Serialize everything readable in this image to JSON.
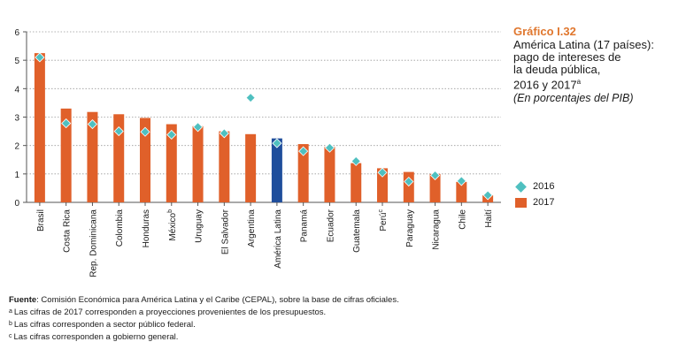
{
  "figure": {
    "label": "Gráfico I.32",
    "title_lines": [
      "América Latina (17 países):",
      "pago de intereses de",
      "la deuda pública,",
      "2016 y 2017"
    ],
    "title_sup": "a",
    "subtitle": "(En porcentajes del PIB)"
  },
  "legend": {
    "s2016": "2016",
    "s2017": "2017"
  },
  "colors": {
    "bar": "#e0602a",
    "bar_highlight": "#1f4e9c",
    "diamond": "#4fc0c0",
    "grid": "#9a9a9a",
    "label_accent": "#e0772e"
  },
  "chart_data": {
    "type": "bar",
    "title": "América Latina (17 países): pago de intereses de la deuda pública, 2016 y 2017",
    "ylabel": "En porcentajes del PIB",
    "ylim": [
      0,
      6
    ],
    "yticks": [
      "0",
      "1",
      "2",
      "3",
      "4",
      "5",
      "6"
    ],
    "grid": true,
    "highlight_category": "América Latina",
    "categories": [
      {
        "name": "Brasil",
        "sup": ""
      },
      {
        "name": "Costa Rica",
        "sup": ""
      },
      {
        "name": "Rep. Dominicana",
        "sup": ""
      },
      {
        "name": "Colombia",
        "sup": ""
      },
      {
        "name": "Honduras",
        "sup": ""
      },
      {
        "name": "México",
        "sup": "b"
      },
      {
        "name": "Uruguay",
        "sup": ""
      },
      {
        "name": "El Salvador",
        "sup": ""
      },
      {
        "name": "Argentina",
        "sup": ""
      },
      {
        "name": "América Latina",
        "sup": ""
      },
      {
        "name": "Panamá",
        "sup": ""
      },
      {
        "name": "Ecuador",
        "sup": ""
      },
      {
        "name": "Guatemala",
        "sup": ""
      },
      {
        "name": "Perú",
        "sup": "c"
      },
      {
        "name": "Paraguay",
        "sup": ""
      },
      {
        "name": "Nicaragua",
        "sup": ""
      },
      {
        "name": "Chile",
        "sup": ""
      },
      {
        "name": "Haití",
        "sup": ""
      }
    ],
    "series": [
      {
        "name": "2017",
        "mark": "bar",
        "values": [
          5.25,
          3.3,
          3.18,
          3.1,
          2.97,
          2.75,
          2.68,
          2.5,
          2.4,
          2.25,
          2.05,
          1.95,
          1.38,
          1.2,
          1.07,
          1.0,
          0.72,
          0.25
        ]
      },
      {
        "name": "2016",
        "mark": "diamond",
        "values": [
          5.1,
          2.78,
          2.75,
          2.5,
          2.48,
          2.38,
          2.65,
          2.43,
          3.68,
          2.08,
          1.8,
          1.92,
          1.45,
          1.05,
          0.73,
          0.95,
          0.75,
          0.25
        ]
      }
    ]
  },
  "notes": {
    "source_label": "Fuente",
    "source_text": ": Comisión Económica para América Latina y el Caribe (CEPAL), sobre la base de cifras oficiales.",
    "footnotes": [
      {
        "mark": "a",
        "text": "Las cifras de 2017 corresponden a proyecciones provenientes de los presupuestos."
      },
      {
        "mark": "b",
        "text": "Las cifras corresponden a sector público federal."
      },
      {
        "mark": "c",
        "text": "Las cifras corresponden a gobierno general."
      }
    ]
  }
}
